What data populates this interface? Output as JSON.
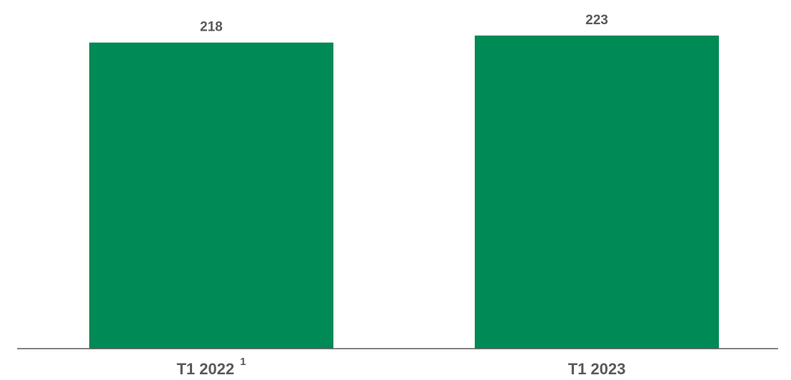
{
  "chart_data": {
    "type": "bar",
    "categories": [
      "T1 2022",
      "T1 2023"
    ],
    "category_footnotes": [
      "1",
      ""
    ],
    "values": [
      218,
      223
    ],
    "value_labels": [
      "218",
      "223"
    ],
    "title": "",
    "xlabel": "",
    "ylabel": "",
    "ylim": [
      0,
      228
    ],
    "grid": false,
    "legend": "none",
    "colors": {
      "bar": "#008a55",
      "axis": "#595959",
      "text": "#595959"
    }
  }
}
